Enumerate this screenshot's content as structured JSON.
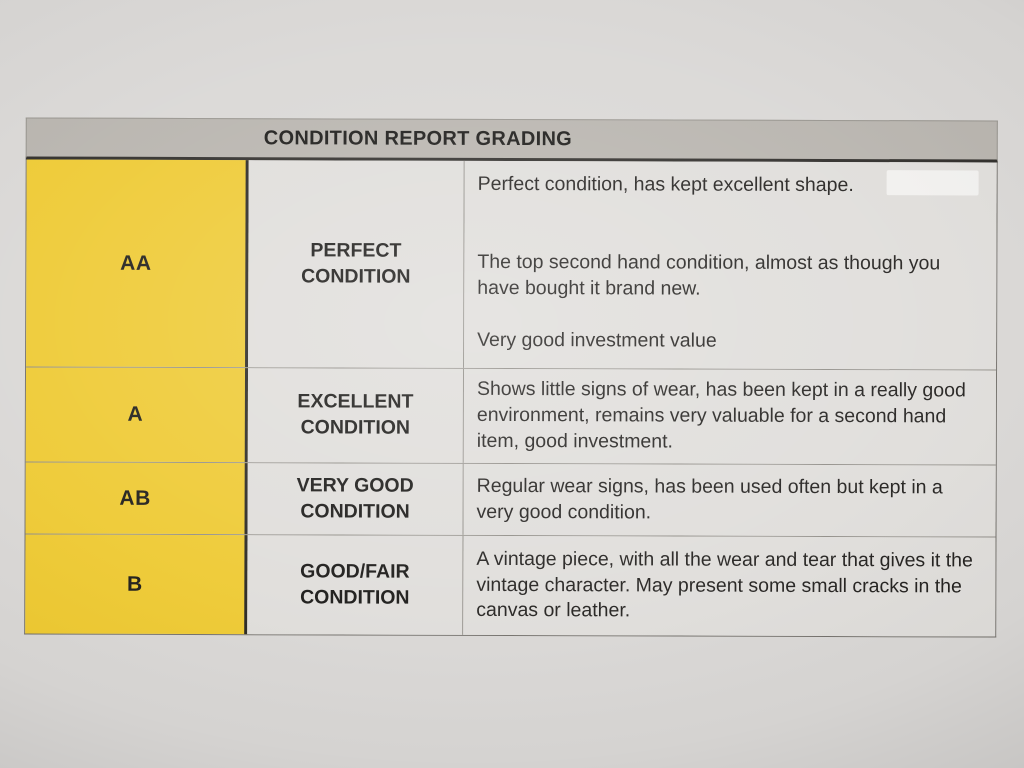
{
  "table": {
    "header_title": "CONDITION REPORT GRADING",
    "rows": [
      {
        "code": "AA",
        "label": "PERFECT CONDITION",
        "paragraphs": [
          "Perfect condition, has kept excellent shape.",
          "The top second hand condition, almost as though you have bought it brand new.",
          "Very good investment value"
        ]
      },
      {
        "code": "A",
        "label": "EXCELLENT CONDITION",
        "paragraphs": [
          "Shows little signs of wear, has been kept in a really good environment, remains very valuable for a second hand item, good investment."
        ]
      },
      {
        "code": "AB",
        "label": "VERY GOOD CONDITION",
        "paragraphs": [
          "Regular wear signs, has been used often but kept in a very good condition."
        ]
      },
      {
        "code": "B",
        "label": "GOOD/FAIR CONDITION",
        "paragraphs": [
          "A vintage piece, with all the wear and tear that gives it the vintage character. May present some small cracks in the canvas or leather."
        ]
      }
    ],
    "colors": {
      "grade_column": "#eec930",
      "header_bar": "#b7b3ad",
      "cell_background": "#dfddda",
      "paper": "#d9d7d5",
      "text": "#1f1d1b"
    }
  }
}
